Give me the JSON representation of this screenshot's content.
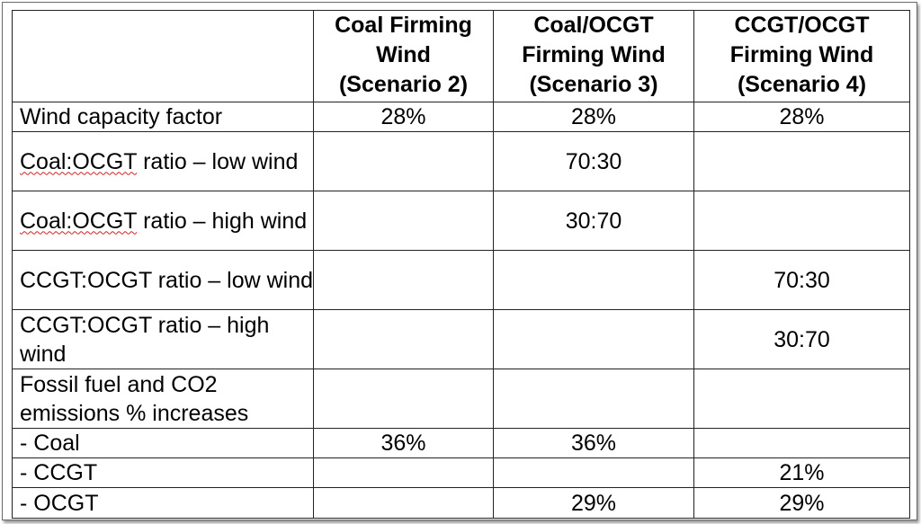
{
  "table": {
    "headers": [
      "",
      "Coal Firming Wind (Scenario 2)",
      "Coal/OCGT Firming Wind (Scenario 3)",
      "CCGT/OCGT Firming Wind (Scenario 4)"
    ],
    "header_lines": [
      [],
      [
        "Coal Firming",
        "Wind",
        "(Scenario 2)"
      ],
      [
        "Coal/OCGT",
        "Firming Wind",
        "(Scenario 3)"
      ],
      [
        "CCGT/OCGT",
        "Firming Wind",
        "(Scenario 4)"
      ]
    ],
    "rows": [
      {
        "label": "Wind capacity factor",
        "values": [
          "28%",
          "28%",
          "28%"
        ]
      },
      {
        "label_pre": "Coal:OCGT",
        "label_post": " ratio – low wind",
        "values": [
          "",
          "70:30",
          ""
        ]
      },
      {
        "label_pre": "Coal:OCGT",
        "label_post": " ratio – high wind",
        "values": [
          "",
          "30:70",
          ""
        ]
      },
      {
        "label": "CCGT:OCGT ratio – low wind",
        "values": [
          "",
          "",
          "70:30"
        ]
      },
      {
        "label": "CCGT:OCGT ratio – high wind",
        "values": [
          "",
          "",
          "30:70"
        ]
      },
      {
        "label": "Fossil fuel and CO2 emissions % increases",
        "values": [
          "",
          "",
          ""
        ]
      },
      {
        "label": "- Coal",
        "values": [
          "36%",
          "36%",
          ""
        ]
      },
      {
        "label": "- CCGT",
        "values": [
          "",
          "",
          "21%"
        ]
      },
      {
        "label": "- OCGT",
        "values": [
          "",
          "29%",
          "29%"
        ]
      }
    ]
  }
}
